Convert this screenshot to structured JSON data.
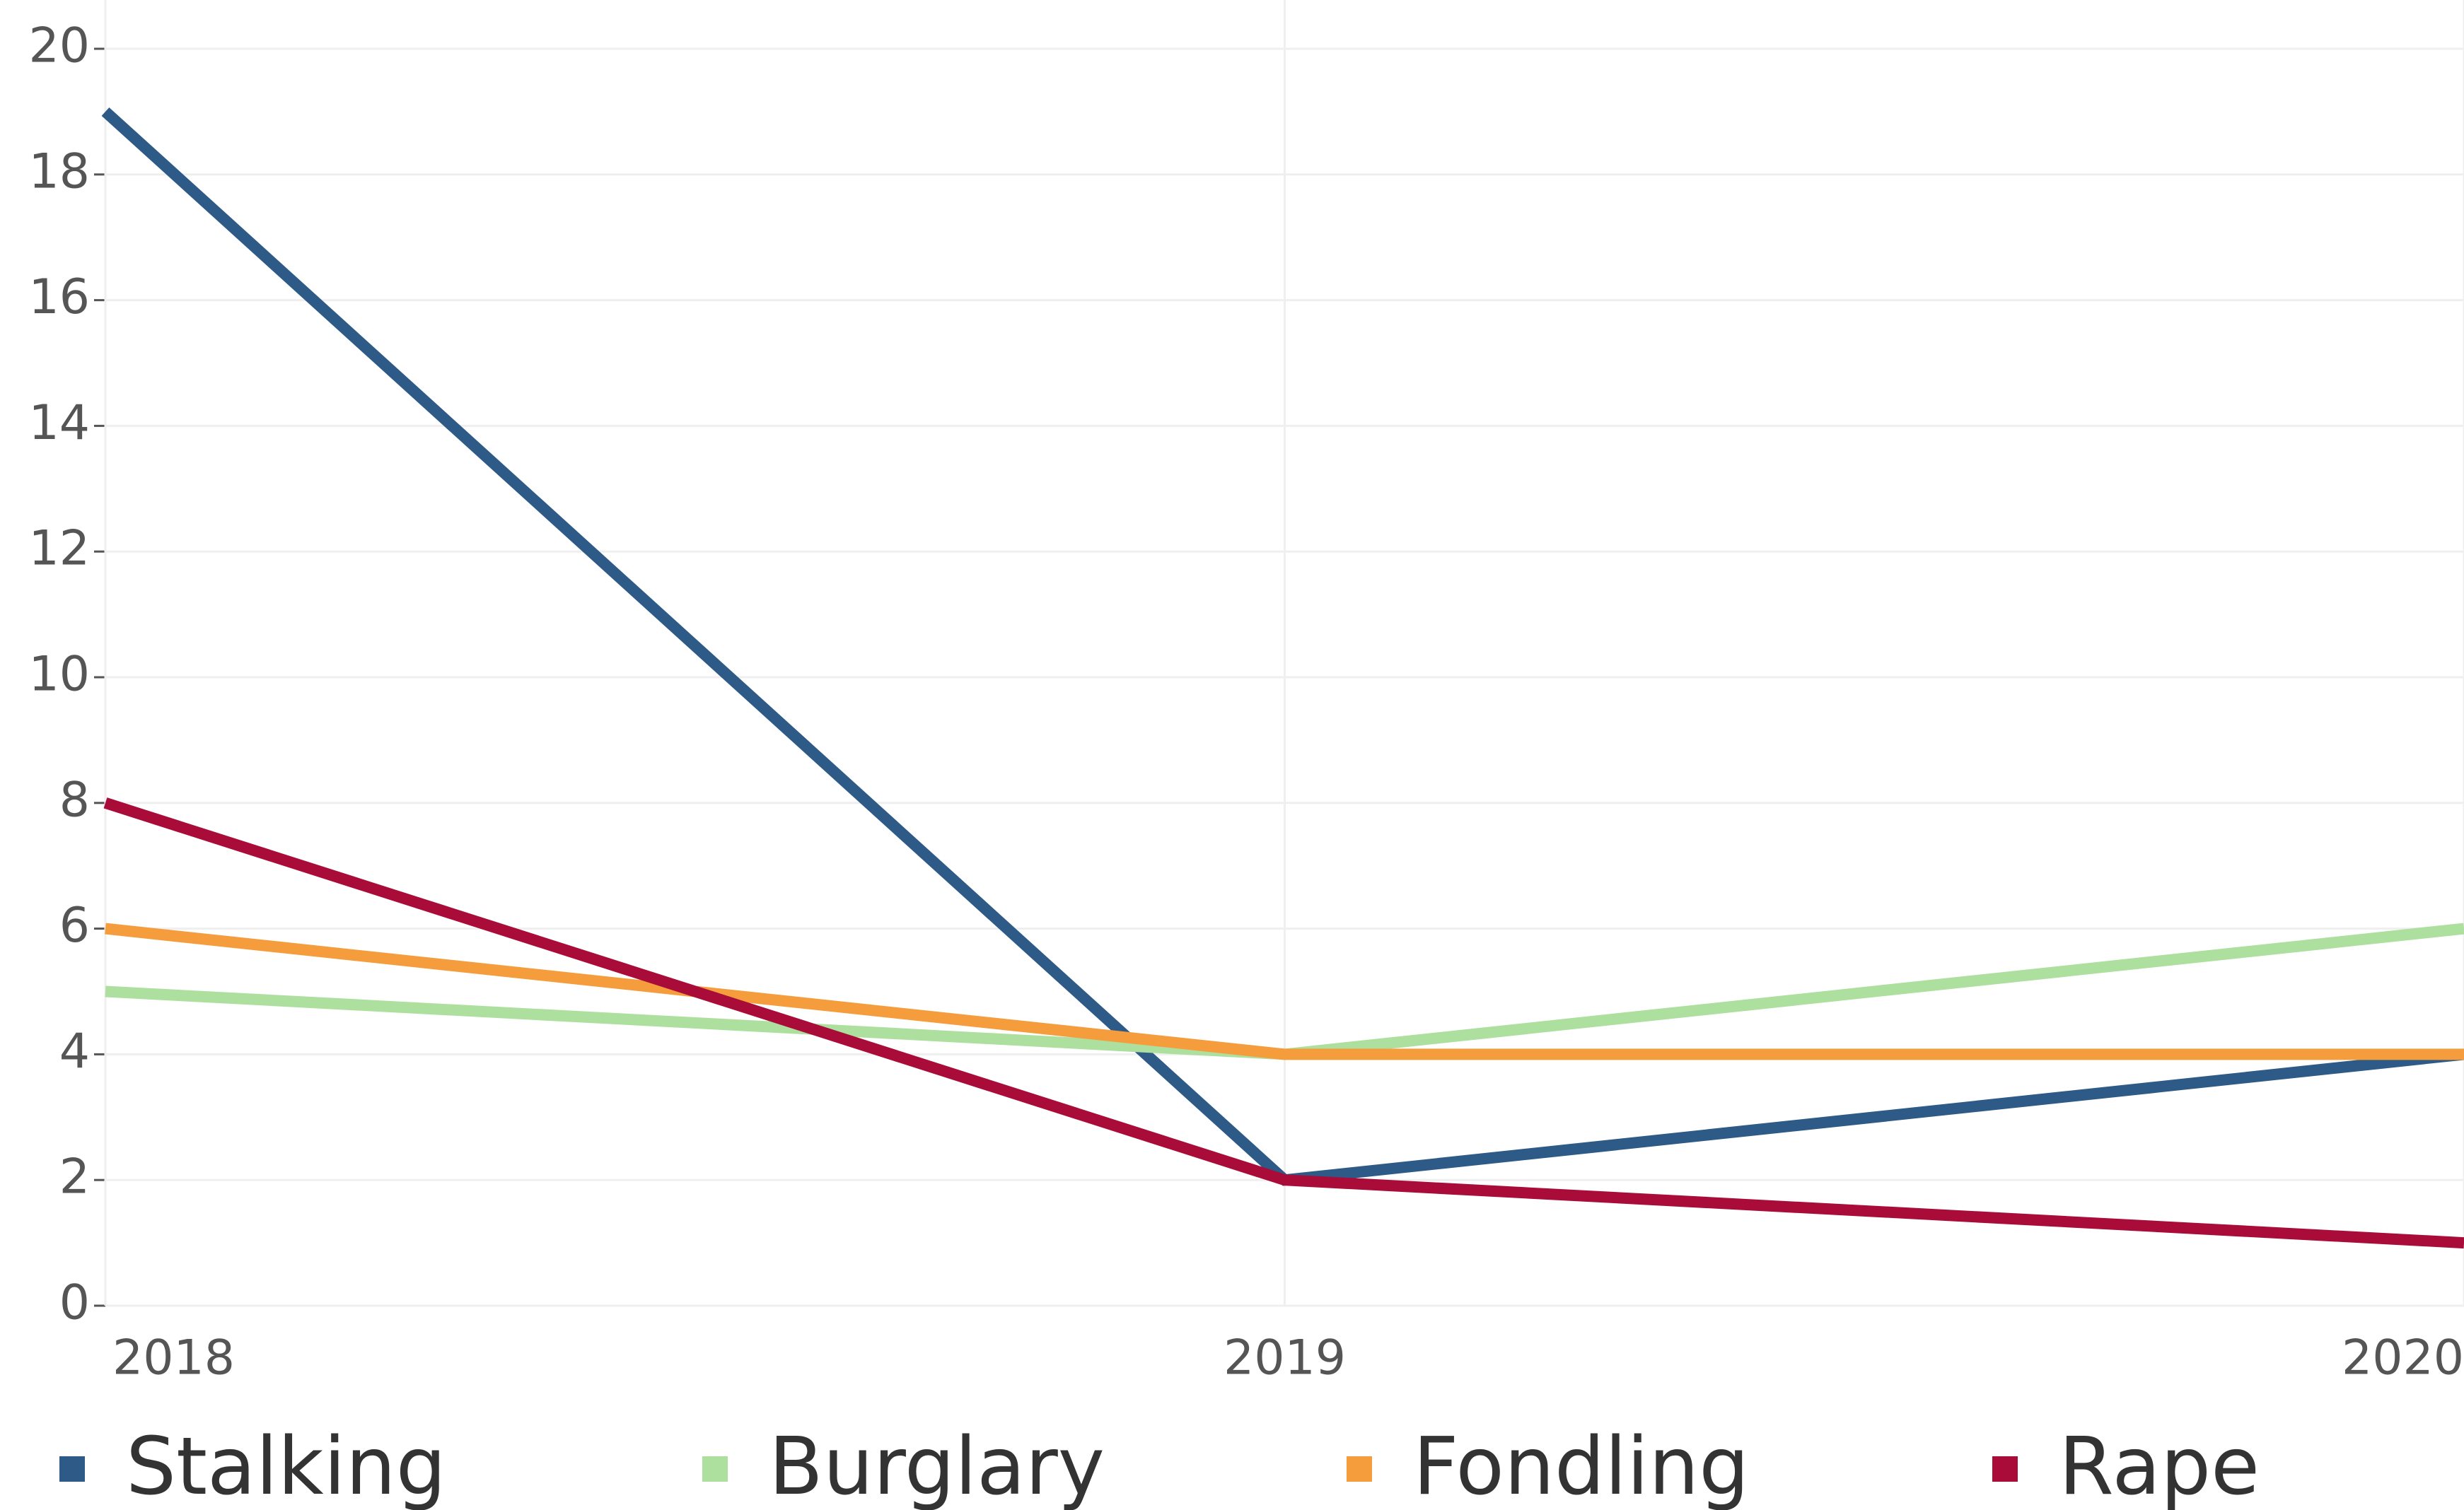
{
  "chart_data": {
    "type": "line",
    "x": [
      2018,
      2019,
      2020
    ],
    "xlim": [
      2018,
      2020
    ],
    "xticks": [
      2018,
      2019,
      2020
    ],
    "ylim": [
      0,
      20
    ],
    "yticks": [
      0,
      2,
      4,
      6,
      8,
      10,
      12,
      14,
      16,
      18,
      20
    ],
    "grid": true,
    "legend": "bottom",
    "series": [
      {
        "name": "Stalking",
        "color": "#2e5a87",
        "values": [
          19,
          2,
          4
        ]
      },
      {
        "name": "Burglary",
        "color": "#addf9f",
        "values": [
          5,
          4,
          6
        ]
      },
      {
        "name": "Fondling",
        "color": "#f59d3d",
        "values": [
          6,
          4,
          4
        ]
      },
      {
        "name": "Rape",
        "color": "#a90c38",
        "values": [
          8,
          2,
          1
        ]
      }
    ]
  }
}
